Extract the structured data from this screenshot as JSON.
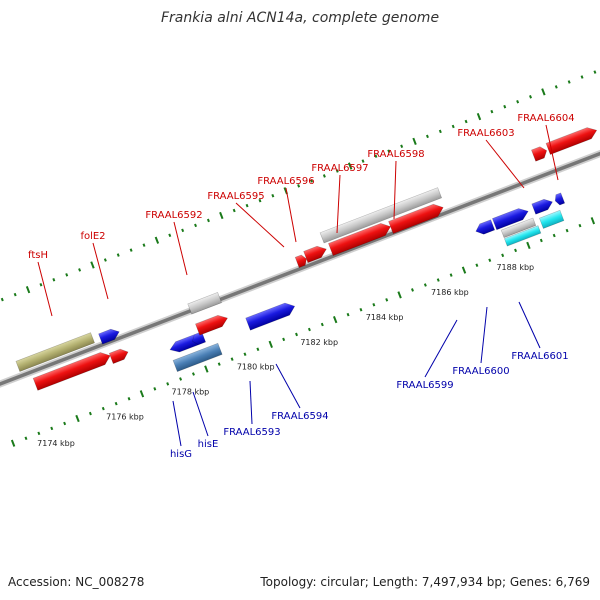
{
  "title": "Frankia alni ACN14a, complete genome",
  "footer": {
    "accession": "Accession: NC_008278",
    "topology": "Topology: circular; Length: 7,497,934 bp; Genes: 6,769"
  },
  "kbp_labels": [
    "7174 kbp",
    "7176 kbp",
    "7178 kbp",
    "7180 kbp",
    "7182 kbp",
    "7184 kbp",
    "7186 kbp",
    "7188 kbp"
  ],
  "genes_top": [
    "ftsH",
    "folE2",
    "FRAAL6592",
    "FRAAL6595",
    "FRAAL6596",
    "FRAAL6597",
    "FRAAL6598",
    "FRAAL6603",
    "FRAAL6604"
  ],
  "genes_bottom": [
    "hisG",
    "hisE",
    "FRAAL6593",
    "FRAAL6594",
    "FRAAL6599",
    "FRAAL6600",
    "FRAAL6601"
  ],
  "colors": {
    "forward_cds": "#ee1111",
    "reverse_cds": "#1a1ae0",
    "gene_gray": "#c8c8c8",
    "olive": "#b3b070",
    "cyan": "#22e6ee",
    "steel": "#4a7fb5",
    "tick": "#1a7a1a",
    "top_label": "#cc0000",
    "bottom_label": "#0000aa",
    "backbone": "#888888"
  }
}
